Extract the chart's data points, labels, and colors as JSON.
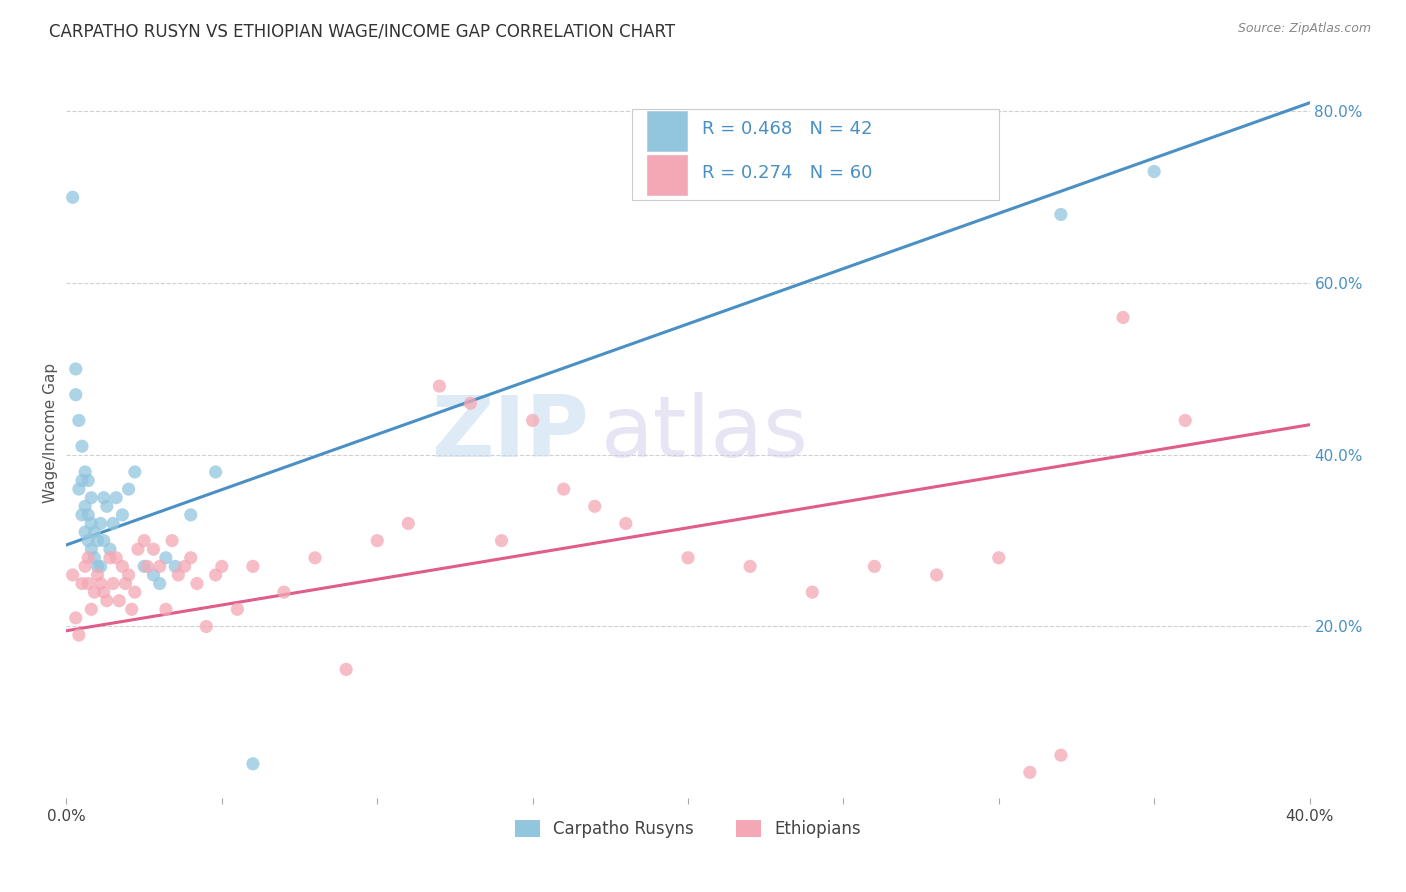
{
  "title": "CARPATHO RUSYN VS ETHIOPIAN WAGE/INCOME GAP CORRELATION CHART",
  "source": "Source: ZipAtlas.com",
  "ylabel": "Wage/Income Gap",
  "xlim": [
    0.0,
    0.4
  ],
  "ylim": [
    0.0,
    0.85
  ],
  "ytick_labels_right": [
    "20.0%",
    "40.0%",
    "60.0%",
    "80.0%"
  ],
  "ytick_vals_right": [
    0.2,
    0.4,
    0.6,
    0.8
  ],
  "blue_color": "#92c5de",
  "pink_color": "#f4a7b5",
  "blue_line_color": "#4a90c4",
  "pink_line_color": "#e05c8a",
  "blue_R": 0.468,
  "blue_N": 42,
  "pink_R": 0.274,
  "pink_N": 60,
  "legend_label1": "Carpatho Rusyns",
  "legend_label2": "Ethiopians",
  "watermark_zip": "ZIP",
  "watermark_atlas": "atlas",
  "blue_scatter_x": [
    0.002,
    0.003,
    0.003,
    0.004,
    0.004,
    0.005,
    0.005,
    0.005,
    0.006,
    0.006,
    0.006,
    0.007,
    0.007,
    0.007,
    0.008,
    0.008,
    0.008,
    0.009,
    0.009,
    0.01,
    0.01,
    0.011,
    0.011,
    0.012,
    0.012,
    0.013,
    0.014,
    0.015,
    0.016,
    0.018,
    0.02,
    0.022,
    0.025,
    0.028,
    0.03,
    0.032,
    0.035,
    0.04,
    0.048,
    0.06,
    0.32,
    0.35
  ],
  "blue_scatter_y": [
    0.7,
    0.47,
    0.5,
    0.36,
    0.44,
    0.33,
    0.37,
    0.41,
    0.31,
    0.34,
    0.38,
    0.3,
    0.33,
    0.37,
    0.29,
    0.32,
    0.35,
    0.28,
    0.31,
    0.27,
    0.3,
    0.27,
    0.32,
    0.3,
    0.35,
    0.34,
    0.29,
    0.32,
    0.35,
    0.33,
    0.36,
    0.38,
    0.27,
    0.26,
    0.25,
    0.28,
    0.27,
    0.33,
    0.38,
    0.04,
    0.68,
    0.73
  ],
  "pink_scatter_x": [
    0.002,
    0.003,
    0.004,
    0.005,
    0.006,
    0.007,
    0.007,
    0.008,
    0.009,
    0.01,
    0.011,
    0.012,
    0.013,
    0.014,
    0.015,
    0.016,
    0.017,
    0.018,
    0.019,
    0.02,
    0.021,
    0.022,
    0.023,
    0.025,
    0.026,
    0.028,
    0.03,
    0.032,
    0.034,
    0.036,
    0.038,
    0.04,
    0.042,
    0.045,
    0.048,
    0.05,
    0.055,
    0.06,
    0.07,
    0.08,
    0.09,
    0.1,
    0.11,
    0.12,
    0.13,
    0.14,
    0.15,
    0.16,
    0.17,
    0.18,
    0.2,
    0.22,
    0.24,
    0.26,
    0.28,
    0.3,
    0.31,
    0.32,
    0.34,
    0.36
  ],
  "pink_scatter_y": [
    0.26,
    0.21,
    0.19,
    0.25,
    0.27,
    0.25,
    0.28,
    0.22,
    0.24,
    0.26,
    0.25,
    0.24,
    0.23,
    0.28,
    0.25,
    0.28,
    0.23,
    0.27,
    0.25,
    0.26,
    0.22,
    0.24,
    0.29,
    0.3,
    0.27,
    0.29,
    0.27,
    0.22,
    0.3,
    0.26,
    0.27,
    0.28,
    0.25,
    0.2,
    0.26,
    0.27,
    0.22,
    0.27,
    0.24,
    0.28,
    0.15,
    0.3,
    0.32,
    0.48,
    0.46,
    0.3,
    0.44,
    0.36,
    0.34,
    0.32,
    0.28,
    0.27,
    0.24,
    0.27,
    0.26,
    0.28,
    0.03,
    0.05,
    0.56,
    0.44
  ],
  "blue_line_x": [
    0.0,
    0.4
  ],
  "blue_line_y": [
    0.295,
    0.81
  ],
  "pink_line_x": [
    0.0,
    0.4
  ],
  "pink_line_y": [
    0.195,
    0.435
  ],
  "background_color": "#ffffff",
  "grid_color": "#d0d0d0"
}
